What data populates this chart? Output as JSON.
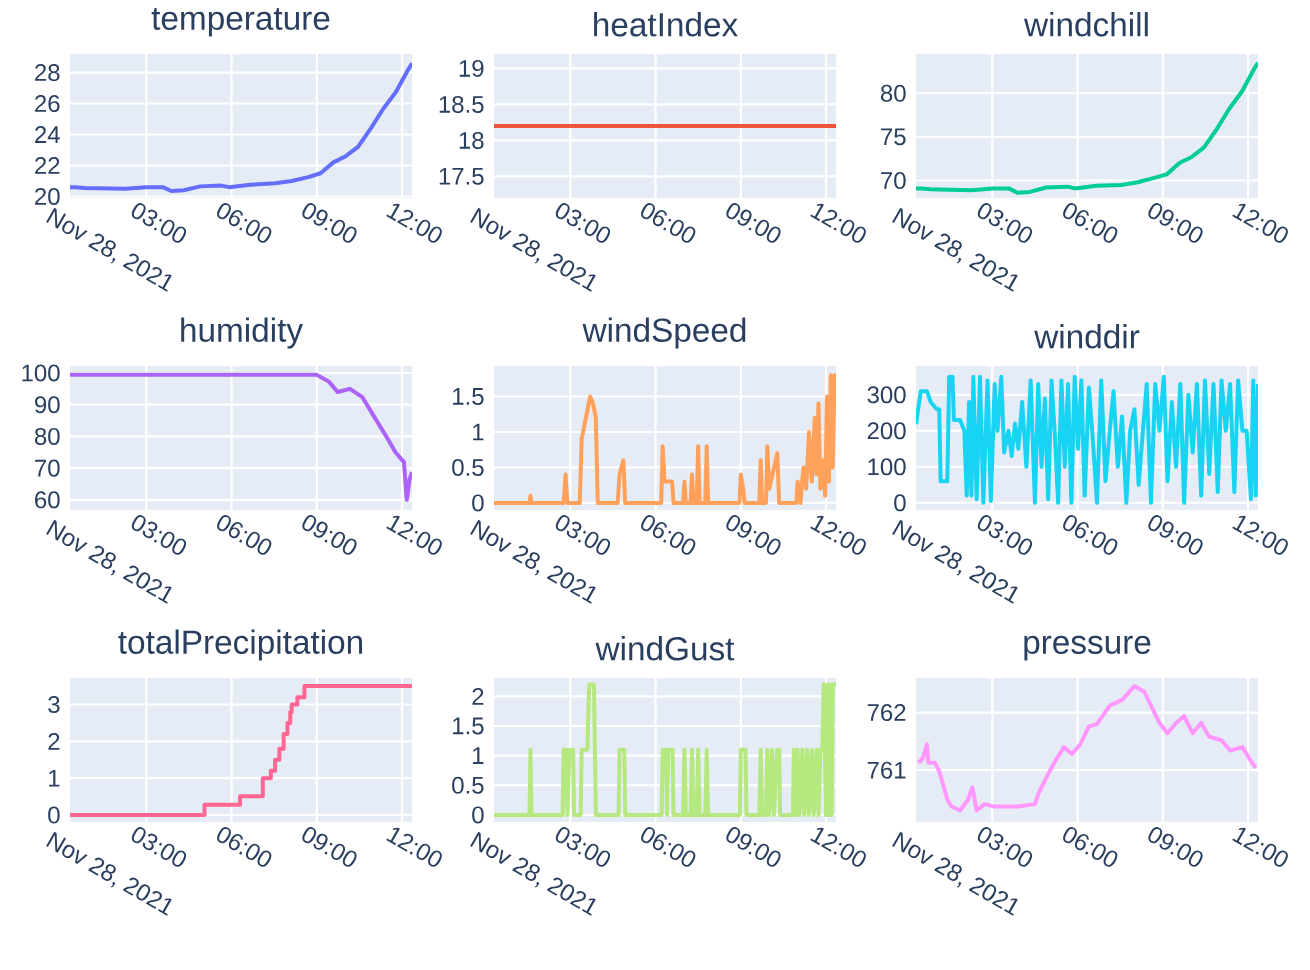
{
  "chart_data": [
    {
      "type": "line",
      "title": "temperature",
      "color": "#636efa",
      "xlabel": "Nov 28, 2021",
      "grid": true,
      "xlim": [
        "2021-11-28T00:19",
        "2021-11-28T12:21"
      ],
      "ylim": [
        19.9,
        29.2
      ],
      "xticks": [
        {
          "value": "2021-11-28T03:00",
          "label": "03:00"
        },
        {
          "value": "2021-11-28T06:00",
          "label": "06:00"
        },
        {
          "value": "2021-11-28T09:00",
          "label": "09:00"
        },
        {
          "value": "2021-11-28T12:00",
          "label": "12:00"
        }
      ],
      "yticks": [
        20,
        22,
        24,
        26,
        28
      ],
      "x": [
        "2021-11-28T00:19",
        "2021-11-28T00:31",
        "2021-11-28T00:49",
        "2021-11-28T02:16",
        "2021-11-28T03:00",
        "2021-11-28T03:35",
        "2021-11-28T03:53",
        "2021-11-28T04:19",
        "2021-11-28T04:54",
        "2021-11-28T05:38",
        "2021-11-28T05:55",
        "2021-11-28T06:40",
        "2021-11-28T07:32",
        "2021-11-28T08:07",
        "2021-11-28T08:42",
        "2021-11-28T09:08",
        "2021-11-28T09:35",
        "2021-11-28T10:01",
        "2021-11-28T10:27",
        "2021-11-28T10:54",
        "2021-11-28T11:20",
        "2021-11-28T11:47",
        "2021-11-28T12:13",
        "2021-11-28T12:21"
      ],
      "values": [
        20.6,
        20.6,
        20.55,
        20.5,
        20.6,
        20.6,
        20.35,
        20.4,
        20.65,
        20.7,
        20.6,
        20.75,
        20.85,
        21.0,
        21.25,
        21.5,
        22.2,
        22.6,
        23.2,
        24.4,
        25.65,
        26.75,
        28.2,
        28.6
      ]
    },
    {
      "type": "line",
      "title": "heatIndex",
      "color": "#ef553b",
      "xlabel": "Nov 28, 2021",
      "grid": true,
      "xlim": [
        "2021-11-28T00:19",
        "2021-11-28T12:21"
      ],
      "ylim": [
        17.2,
        19.2
      ],
      "xticks": [
        {
          "value": "2021-11-28T03:00",
          "label": "03:00"
        },
        {
          "value": "2021-11-28T06:00",
          "label": "06:00"
        },
        {
          "value": "2021-11-28T09:00",
          "label": "09:00"
        },
        {
          "value": "2021-11-28T12:00",
          "label": "12:00"
        }
      ],
      "yticks": [
        17.5,
        18,
        18.5,
        19
      ],
      "x": [
        "2021-11-28T00:19",
        "2021-11-28T06:00",
        "2021-11-28T12:21"
      ],
      "values": [
        18.2,
        18.2,
        18.2
      ]
    },
    {
      "type": "line",
      "title": "windchill",
      "color": "#00cc96",
      "xlabel": "Nov 28, 2021",
      "grid": true,
      "xlim": [
        "2021-11-28T00:19",
        "2021-11-28T12:21"
      ],
      "ylim": [
        68.0,
        84.5
      ],
      "xticks": [
        {
          "value": "2021-11-28T03:00",
          "label": "03:00"
        },
        {
          "value": "2021-11-28T06:00",
          "label": "06:00"
        },
        {
          "value": "2021-11-28T09:00",
          "label": "09:00"
        },
        {
          "value": "2021-11-28T12:00",
          "label": "12:00"
        }
      ],
      "yticks": [
        70,
        75,
        80
      ],
      "x": [
        "2021-11-28T00:19",
        "2021-11-28T00:31",
        "2021-11-28T00:49",
        "2021-11-28T02:16",
        "2021-11-28T03:00",
        "2021-11-28T03:35",
        "2021-11-28T03:53",
        "2021-11-28T04:19",
        "2021-11-28T04:54",
        "2021-11-28T05:38",
        "2021-11-28T05:55",
        "2021-11-28T06:40",
        "2021-11-28T07:32",
        "2021-11-28T08:07",
        "2021-11-28T08:42",
        "2021-11-28T09:08",
        "2021-11-28T09:35",
        "2021-11-28T10:01",
        "2021-11-28T10:27",
        "2021-11-28T10:54",
        "2021-11-28T11:20",
        "2021-11-28T11:47",
        "2021-11-28T12:13",
        "2021-11-28T12:21"
      ],
      "values": [
        69.1,
        69.1,
        69.0,
        68.9,
        69.1,
        69.1,
        68.6,
        68.7,
        69.2,
        69.3,
        69.1,
        69.4,
        69.5,
        69.8,
        70.3,
        70.7,
        72.0,
        72.7,
        73.8,
        75.9,
        78.2,
        80.2,
        82.8,
        83.5
      ]
    },
    {
      "type": "line",
      "title": "humidity",
      "color": "#ab63fa",
      "xlabel": "Nov 28, 2021",
      "grid": true,
      "xlim": [
        "2021-11-28T00:19",
        "2021-11-28T12:21"
      ],
      "ylim": [
        56.8,
        102.2
      ],
      "xticks": [
        {
          "value": "2021-11-28T03:00",
          "label": "03:00"
        },
        {
          "value": "2021-11-28T06:00",
          "label": "06:00"
        },
        {
          "value": "2021-11-28T09:00",
          "label": "09:00"
        },
        {
          "value": "2021-11-28T12:00",
          "label": "12:00"
        }
      ],
      "yticks": [
        60,
        70,
        80,
        90,
        100
      ],
      "x": [
        "2021-11-28T00:19",
        "2021-11-28T09:00",
        "2021-11-28T09:26",
        "2021-11-28T09:44",
        "2021-11-28T10:10",
        "2021-11-28T10:36",
        "2021-11-28T11:02",
        "2021-11-28T11:29",
        "2021-11-28T11:46",
        "2021-11-28T12:04",
        "2021-11-28T12:10",
        "2021-11-28T12:16",
        "2021-11-28T12:21"
      ],
      "values": [
        99.4,
        99.4,
        97.2,
        94,
        95,
        92.4,
        86,
        79.4,
        75,
        71.9,
        60,
        66.5,
        68.7
      ]
    },
    {
      "type": "line",
      "title": "windSpeed",
      "color": "#ffa15a",
      "xlabel": "Nov 28, 2021",
      "grid": true,
      "xlim": [
        "2021-11-28T00:19",
        "2021-11-28T12:21"
      ],
      "ylim": [
        -0.1,
        1.93
      ],
      "xticks": [
        {
          "value": "2021-11-28T03:00",
          "label": "03:00"
        },
        {
          "value": "2021-11-28T06:00",
          "label": "06:00"
        },
        {
          "value": "2021-11-28T09:00",
          "label": "09:00"
        },
        {
          "value": "2021-11-28T12:00",
          "label": "12:00"
        }
      ],
      "yticks": [
        0,
        0.5,
        1,
        1.5
      ],
      "x": [
        "2021-11-28T00:19",
        "2021-11-28T01:34",
        "2021-11-28T01:36",
        "2021-11-28T01:38",
        "2021-11-28T02:46",
        "2021-11-28T02:50",
        "2021-11-28T02:54",
        "2021-11-28T03:20",
        "2021-11-28T03:24",
        "2021-11-28T03:33",
        "2021-11-28T03:42",
        "2021-11-28T03:48",
        "2021-11-28T03:54",
        "2021-11-28T03:58",
        "2021-11-28T04:40",
        "2021-11-28T04:44",
        "2021-11-28T04:52",
        "2021-11-28T04:56",
        "2021-11-28T06:12",
        "2021-11-28T06:15",
        "2021-11-28T06:19",
        "2021-11-28T06:35",
        "2021-11-28T06:38",
        "2021-11-28T06:58",
        "2021-11-28T07:01",
        "2021-11-28T07:04",
        "2021-11-28T07:14",
        "2021-11-28T07:17",
        "2021-11-28T07:20",
        "2021-11-28T07:27",
        "2021-11-28T07:30",
        "2021-11-28T07:33",
        "2021-11-28T07:45",
        "2021-11-28T07:48",
        "2021-11-28T07:51",
        "2021-11-28T08:57",
        "2021-11-28T09:00",
        "2021-11-28T09:05",
        "2021-11-28T09:08",
        "2021-11-28T09:39",
        "2021-11-28T09:42",
        "2021-11-28T09:45",
        "2021-11-28T09:53",
        "2021-11-28T09:56",
        "2021-11-28T10:00",
        "2021-11-28T10:17",
        "2021-11-28T10:21",
        "2021-11-28T10:57",
        "2021-11-28T11:00",
        "2021-11-28T11:06",
        "2021-11-28T11:12",
        "2021-11-28T11:18",
        "2021-11-28T11:24",
        "2021-11-28T11:30",
        "2021-11-28T11:36",
        "2021-11-28T11:40",
        "2021-11-28T11:44",
        "2021-11-28T11:48",
        "2021-11-28T11:54",
        "2021-11-28T11:58",
        "2021-11-28T12:02",
        "2021-11-28T12:06",
        "2021-11-28T12:10",
        "2021-11-28T12:14",
        "2021-11-28T12:18",
        "2021-11-28T12:21"
      ],
      "values": [
        0,
        0,
        0.1,
        0,
        0,
        0.4,
        0,
        0,
        0.9,
        1.2,
        1.5,
        1.4,
        1.2,
        0,
        0,
        0.4,
        0.6,
        0,
        0,
        0.8,
        0.3,
        0.3,
        0,
        0,
        0.3,
        0,
        0,
        0.4,
        0,
        0,
        0.8,
        0,
        0,
        0.8,
        0,
        0,
        0.4,
        0.2,
        0,
        0,
        0.6,
        0,
        0,
        0.8,
        0.2,
        0.7,
        0,
        0,
        0.3,
        0,
        0.5,
        0.2,
        1.0,
        0.3,
        1.2,
        0.4,
        1.4,
        0.2,
        0.6,
        0.1,
        1.5,
        0.3,
        1.8,
        0.5,
        1.8,
        1.8
      ]
    },
    {
      "type": "line",
      "title": "winddir",
      "color": "#19d3f3",
      "xlabel": "Nov 28, 2021",
      "grid": true,
      "xlim": [
        "2021-11-28T00:19",
        "2021-11-28T12:21"
      ],
      "ylim": [
        -20,
        380
      ],
      "xticks": [
        {
          "value": "2021-11-28T03:00",
          "label": "03:00"
        },
        {
          "value": "2021-11-28T06:00",
          "label": "06:00"
        },
        {
          "value": "2021-11-28T09:00",
          "label": "09:00"
        },
        {
          "value": "2021-11-28T12:00",
          "label": "12:00"
        }
      ],
      "yticks": [
        0,
        100,
        200,
        300
      ],
      "x": [
        "2021-11-28T00:19",
        "2021-11-28T00:29",
        "2021-11-28T00:42",
        "2021-11-28T00:50",
        "2021-11-28T01:03",
        "2021-11-28T01:08",
        "2021-11-28T01:11",
        "2021-11-28T01:25",
        "2021-11-28T01:29",
        "2021-11-28T01:36",
        "2021-11-28T01:39",
        "2021-11-28T01:52",
        "2021-11-28T02:01",
        "2021-11-28T02:06",
        "2021-11-28T02:11",
        "2021-11-28T02:16",
        "2021-11-28T02:20",
        "2021-11-28T02:27",
        "2021-11-28T02:34",
        "2021-11-28T02:41",
        "2021-11-28T02:50",
        "2021-11-28T02:57",
        "2021-11-28T03:05",
        "2021-11-28T03:11",
        "2021-11-28T03:19",
        "2021-11-28T03:25",
        "2021-11-28T03:34",
        "2021-11-28T03:41",
        "2021-11-28T03:48",
        "2021-11-28T03:55",
        "2021-11-28T04:03",
        "2021-11-28T04:12",
        "2021-11-28T04:21",
        "2021-11-28T04:30",
        "2021-11-28T04:37",
        "2021-11-28T04:44",
        "2021-11-28T04:51",
        "2021-11-28T04:58",
        "2021-11-28T05:05",
        "2021-11-28T05:12",
        "2021-11-28T05:19",
        "2021-11-28T05:26",
        "2021-11-28T05:33",
        "2021-11-28T05:40",
        "2021-11-28T05:47",
        "2021-11-28T05:54",
        "2021-11-28T06:01",
        "2021-11-28T06:08",
        "2021-11-28T06:15",
        "2021-11-28T06:24",
        "2021-11-28T06:32",
        "2021-11-28T06:41",
        "2021-11-28T06:50",
        "2021-11-28T06:59",
        "2021-11-28T07:08",
        "2021-11-28T07:16",
        "2021-11-28T07:25",
        "2021-11-28T07:34",
        "2021-11-28T07:43",
        "2021-11-28T07:51",
        "2021-11-28T08:00",
        "2021-11-28T08:09",
        "2021-11-28T08:18",
        "2021-11-28T08:26",
        "2021-11-28T08:35",
        "2021-11-28T08:44",
        "2021-11-28T08:53",
        "2021-11-28T09:02",
        "2021-11-28T09:10",
        "2021-11-28T09:19",
        "2021-11-28T09:28",
        "2021-11-28T09:37",
        "2021-11-28T09:45",
        "2021-11-28T09:54",
        "2021-11-28T10:03",
        "2021-11-28T10:12",
        "2021-11-28T10:21",
        "2021-11-28T10:29",
        "2021-11-28T10:38",
        "2021-11-28T10:47",
        "2021-11-28T10:56",
        "2021-11-28T11:04",
        "2021-11-28T11:13",
        "2021-11-28T11:22",
        "2021-11-28T11:31",
        "2021-11-28T11:39",
        "2021-11-28T11:48",
        "2021-11-28T11:57",
        "2021-11-28T12:06",
        "2021-11-28T12:11",
        "2021-11-28T12:16",
        "2021-11-28T12:21"
      ],
      "values": [
        218,
        310,
        310,
        280,
        260,
        260,
        60,
        60,
        350,
        350,
        230,
        230,
        200,
        20,
        280,
        20,
        350,
        10,
        350,
        0,
        340,
        5,
        330,
        200,
        350,
        140,
        200,
        130,
        220,
        150,
        280,
        100,
        340,
        0,
        330,
        100,
        290,
        10,
        340,
        190,
        0,
        340,
        100,
        330,
        0,
        350,
        150,
        340,
        20,
        320,
        180,
        0,
        340,
        60,
        200,
        310,
        100,
        240,
        0,
        200,
        260,
        50,
        200,
        330,
        0,
        330,
        200,
        350,
        60,
        280,
        100,
        330,
        0,
        300,
        140,
        330,
        20,
        340,
        80,
        330,
        30,
        340,
        200,
        330,
        30,
        340,
        200,
        200,
        10,
        340,
        20,
        330
      ]
    },
    {
      "type": "step",
      "title": "totalPrecipitation",
      "color": "#ff6692",
      "xlabel": "Nov 28, 2021",
      "grid": true,
      "xlim": [
        "2021-11-28T00:19",
        "2021-11-28T12:21"
      ],
      "ylim": [
        -0.19,
        3.72
      ],
      "xticks": [
        {
          "value": "2021-11-28T03:00",
          "label": "03:00"
        },
        {
          "value": "2021-11-28T06:00",
          "label": "06:00"
        },
        {
          "value": "2021-11-28T09:00",
          "label": "09:00"
        },
        {
          "value": "2021-11-28T12:00",
          "label": "12:00"
        }
      ],
      "yticks": [
        0,
        1,
        2,
        3
      ],
      "x": [
        "2021-11-28T00:19",
        "2021-11-28T05:03",
        "2021-11-28T06:18",
        "2021-11-28T07:06",
        "2021-11-28T07:23",
        "2021-11-28T07:32",
        "2021-11-28T07:41",
        "2021-11-28T07:50",
        "2021-11-28T07:58",
        "2021-11-28T08:04",
        "2021-11-28T08:07",
        "2021-11-28T08:19",
        "2021-11-28T08:34",
        "2021-11-28T12:21"
      ],
      "values": [
        0,
        0.28,
        0.51,
        1.0,
        1.2,
        1.5,
        1.8,
        2.2,
        2.5,
        2.8,
        3.0,
        3.2,
        3.5,
        3.5
      ]
    },
    {
      "type": "line",
      "title": "windGust",
      "color": "#b6e880",
      "xlabel": "Nov 28, 2021",
      "grid": true,
      "xlim": [
        "2021-11-28T00:19",
        "2021-11-28T12:21"
      ],
      "ylim": [
        -0.12,
        2.31
      ],
      "xticks": [
        {
          "value": "2021-11-28T03:00",
          "label": "03:00"
        },
        {
          "value": "2021-11-28T06:00",
          "label": "06:00"
        },
        {
          "value": "2021-11-28T09:00",
          "label": "09:00"
        },
        {
          "value": "2021-11-28T12:00",
          "label": "12:00"
        }
      ],
      "yticks": [
        0,
        0.5,
        1,
        1.5,
        2
      ],
      "x": [
        "2021-11-28T00:19",
        "2021-11-28T01:34",
        "2021-11-28T01:36",
        "2021-11-28T01:38",
        "2021-11-28T02:44",
        "2021-11-28T02:46",
        "2021-11-28T02:52",
        "2021-11-28T02:54",
        "2021-11-28T02:58",
        "2021-11-28T03:06",
        "2021-11-28T03:08",
        "2021-11-28T03:22",
        "2021-11-28T03:24",
        "2021-11-28T03:30",
        "2021-11-28T03:36",
        "2021-11-28T03:40",
        "2021-11-28T03:50",
        "2021-11-28T03:54",
        "2021-11-28T04:42",
        "2021-11-28T04:44",
        "2021-11-28T04:54",
        "2021-11-28T04:56",
        "2021-11-28T06:13",
        "2021-11-28T06:15",
        "2021-11-28T06:22",
        "2021-11-28T06:24",
        "2021-11-28T06:27",
        "2021-11-28T06:36",
        "2021-11-28T06:38",
        "2021-11-28T06:58",
        "2021-11-28T07:01",
        "2021-11-28T07:04",
        "2021-11-28T07:14",
        "2021-11-28T07:17",
        "2021-11-28T07:20",
        "2021-11-28T07:27",
        "2021-11-28T07:30",
        "2021-11-28T07:33",
        "2021-11-28T07:45",
        "2021-11-28T07:48",
        "2021-11-28T07:51",
        "2021-11-28T08:58",
        "2021-11-28T09:00",
        "2021-11-28T09:10",
        "2021-11-28T09:12",
        "2021-11-28T09:39",
        "2021-11-28T09:42",
        "2021-11-28T09:45",
        "2021-11-28T09:53",
        "2021-11-28T09:56",
        "2021-11-28T10:00",
        "2021-11-28T10:06",
        "2021-11-28T10:10",
        "2021-11-28T10:17",
        "2021-11-28T10:21",
        "2021-11-28T10:23",
        "2021-11-28T10:50",
        "2021-11-28T10:52",
        "2021-11-28T10:56",
        "2021-11-28T11:00",
        "2021-11-28T11:04",
        "2021-11-28T11:10",
        "2021-11-28T11:14",
        "2021-11-28T11:20",
        "2021-11-28T11:24",
        "2021-11-28T11:30",
        "2021-11-28T11:34",
        "2021-11-28T11:40",
        "2021-11-28T11:44",
        "2021-11-28T11:48",
        "2021-11-28T11:52",
        "2021-11-28T11:55",
        "2021-11-28T12:00",
        "2021-11-28T12:02",
        "2021-11-28T12:06",
        "2021-11-28T12:08",
        "2021-11-28T12:12",
        "2021-11-28T12:14",
        "2021-11-28T12:21"
      ],
      "values": [
        0,
        0,
        1.1,
        0,
        0,
        1.1,
        1.1,
        0,
        1.1,
        1.1,
        0,
        0,
        1.1,
        1.1,
        1.1,
        2.2,
        2.2,
        0,
        0,
        1.1,
        1.1,
        0,
        0,
        1.1,
        1.1,
        0,
        1.1,
        1.1,
        0,
        0,
        1.1,
        0,
        0,
        1.1,
        0,
        0,
        1.1,
        0,
        0,
        1.1,
        0,
        0,
        1.1,
        1.1,
        0,
        0,
        1.1,
        0,
        0,
        1.1,
        0,
        1.1,
        0,
        1.1,
        1.1,
        0,
        0,
        1.1,
        0,
        1.1,
        0,
        1.1,
        0,
        1.1,
        0,
        1.1,
        0,
        1.1,
        0,
        1.1,
        1.1,
        2.2,
        0,
        2.2,
        0,
        2.2,
        0,
        2.2,
        2.2
      ]
    },
    {
      "type": "line",
      "title": "pressure",
      "color": "#ff97ff",
      "xlabel": "Nov 28, 2021",
      "grid": true,
      "xlim": [
        "2021-11-28T00:19",
        "2021-11-28T12:21"
      ],
      "ylim": [
        760.1,
        762.6
      ],
      "xticks": [
        {
          "value": "2021-11-28T03:00",
          "label": "03:00"
        },
        {
          "value": "2021-11-28T06:00",
          "label": "06:00"
        },
        {
          "value": "2021-11-28T09:00",
          "label": "09:00"
        },
        {
          "value": "2021-11-28T12:00",
          "label": "12:00"
        }
      ],
      "yticks": [
        761,
        762
      ],
      "x": [
        "2021-11-28T00:24",
        "2021-11-28T00:33",
        "2021-11-28T00:42",
        "2021-11-28T00:45",
        "2021-11-28T00:59",
        "2021-11-28T01:08",
        "2021-11-28T01:17",
        "2021-11-28T01:25",
        "2021-11-28T01:34",
        "2021-11-28T01:52",
        "2021-11-28T02:09",
        "2021-11-28T02:18",
        "2021-11-28T02:27",
        "2021-11-28T02:44",
        "2021-11-28T03:02",
        "2021-11-28T03:19",
        "2021-11-28T03:55",
        "2021-11-28T04:30",
        "2021-11-28T04:38",
        "2021-11-28T04:56",
        "2021-11-28T05:13",
        "2021-11-28T05:31",
        "2021-11-28T05:48",
        "2021-11-28T06:06",
        "2021-11-28T06:24",
        "2021-11-28T06:41",
        "2021-11-28T07:08",
        "2021-11-28T07:34",
        "2021-11-28T08:00",
        "2021-11-28T08:21",
        "2021-11-28T08:35",
        "2021-11-28T08:53",
        "2021-11-28T09:10",
        "2021-11-28T09:28",
        "2021-11-28T09:45",
        "2021-11-28T10:03",
        "2021-11-28T10:21",
        "2021-11-28T10:38",
        "2021-11-28T11:04",
        "2021-11-28T11:22",
        "2021-11-28T11:48",
        "2021-11-28T12:06",
        "2021-11-28T12:16"
      ],
      "values": [
        761.13,
        761.2,
        761.45,
        761.13,
        761.13,
        760.98,
        760.73,
        760.49,
        760.37,
        760.3,
        760.49,
        760.7,
        760.3,
        760.41,
        760.37,
        760.37,
        760.37,
        760.41,
        760.6,
        760.9,
        761.16,
        761.4,
        761.28,
        761.45,
        761.76,
        761.8,
        762.12,
        762.22,
        762.46,
        762.36,
        762.12,
        761.82,
        761.64,
        761.82,
        761.94,
        761.64,
        761.82,
        761.58,
        761.52,
        761.34,
        761.4,
        761.16,
        761.04
      ]
    }
  ]
}
